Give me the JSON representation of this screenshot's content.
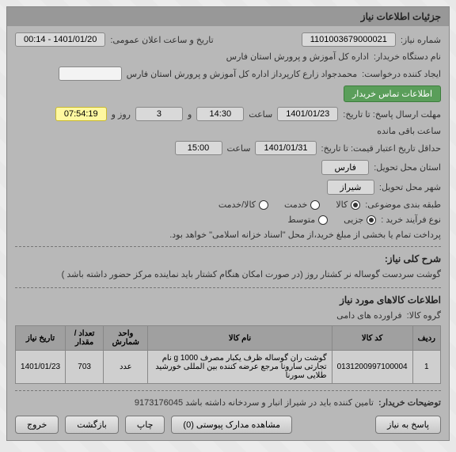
{
  "header": {
    "title": "جزئیات اطلاعات نیاز"
  },
  "info": {
    "need_no_lbl": "شماره نیاز:",
    "need_no": "1101003679000021",
    "announce_lbl": "تاریخ و ساعت اعلان عمومی:",
    "announce": "1401/01/20 - 00:14",
    "buyer_lbl": "نام دستگاه خریدار:",
    "buyer": "اداره کل آموزش و پرورش استان فارس",
    "requester_lbl": "ایجاد کننده درخواست:",
    "requester": "محمدجواد زارع کارپرداز اداره کل آموزش و پرورش استان فارس",
    "contact_btn": "اطلاعات تماس خریدار",
    "deadline_lbl": "مهلت ارسال پاسخ: تا تاریخ:",
    "deadline_date": "1401/01/23",
    "time_lbl": "ساعت",
    "deadline_time": "14:30",
    "and_lbl": "و",
    "days": "3",
    "days_and_lbl": "روز و",
    "countdown": "07:54:19",
    "remain_lbl": "ساعت باقی مانده",
    "valid_lbl": "حداقل تاریخ اعتبار قیمت: تا تاریخ:",
    "valid_date": "1401/01/31",
    "valid_time": "15:00",
    "exec_prov_lbl": "استان محل تحویل:",
    "exec_prov": "فارس",
    "exec_city_lbl": "شهر محل تحویل:",
    "exec_city": "شیراز",
    "group_lbl": "طبقه بندی موضوعی:",
    "group": {
      "kala": "کالا",
      "khadmat": "خدمت",
      "both": "کالا/خدمت"
    },
    "ptype_lbl": "نوع فرآیند خرید :",
    "ptype": {
      "limited": "جزیی",
      "medium": "متوسط"
    },
    "ptype_note": "پرداخت تمام یا بخشی از مبلغ خرید،از محل \"اسناد خزانه اسلامی\" خواهد بود."
  },
  "desc": {
    "title": "شرح کلی نیاز:",
    "text": "گوشت سردست گوساله نر کشتار روز (در صورت امکان هنگام کشتار باید نماینده مرکز حضور داشته باشد )"
  },
  "items_section": {
    "title": "اطلاعات کالاهای مورد نیاز",
    "group_lbl": "گروه کالا:",
    "group_val": "فراورده های دامی",
    "cols": {
      "idx": "ردیف",
      "code": "کد کالا",
      "iname": "نام کالا",
      "unit": "واحد شمارش",
      "qty": "تعداد / مقدار",
      "ndate": "تاریخ نیاز"
    },
    "rows": [
      {
        "idx": "1",
        "code": "0131200997100004",
        "iname": "گوشت ران گوساله ظرف یکبار مصرف 1000 g نام تجارتی سارونا مرجع عرضه کننده بین المللی خورشید طلایی سورنا",
        "unit": "عدد",
        "qty": "703",
        "ndate": "1401/01/23"
      }
    ]
  },
  "buyer_note": {
    "lbl": "توضیحات خریدار:",
    "text": "تامین کننده باید در شیراز انبار و سردخانه داشته باشد 9173176045"
  },
  "buttons": {
    "reply": "پاسخ به نیاز",
    "attach": "مشاهده مدارک پیوستی (0)",
    "print": "چاپ",
    "back": "بازگشت",
    "exit": "خروج"
  }
}
